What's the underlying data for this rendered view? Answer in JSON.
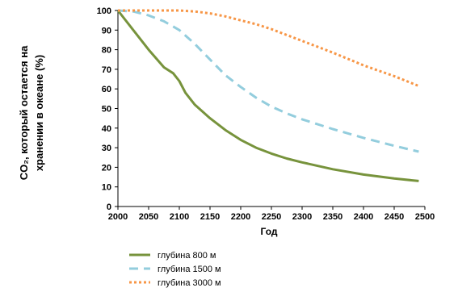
{
  "chart_data": {
    "type": "line",
    "title": "",
    "xlabel": "Год",
    "ylabel_line1": "CO₂, который остается на",
    "ylabel_line2": "хранении в океане (%)",
    "xlim": [
      2000,
      2500
    ],
    "ylim": [
      0,
      100
    ],
    "x_ticks": [
      2000,
      2050,
      2100,
      2150,
      2200,
      2250,
      2300,
      2350,
      2400,
      2450,
      2500
    ],
    "y_ticks": [
      0,
      10,
      20,
      30,
      40,
      50,
      60,
      70,
      80,
      90,
      100
    ],
    "grid": false,
    "legend_position": "bottom-left",
    "series": [
      {
        "name": "глубина 800 м",
        "color": "#77933c",
        "style": "solid",
        "points": [
          [
            2000,
            100
          ],
          [
            2025,
            90
          ],
          [
            2050,
            80
          ],
          [
            2075,
            71
          ],
          [
            2090,
            68
          ],
          [
            2100,
            64
          ],
          [
            2110,
            58
          ],
          [
            2125,
            52
          ],
          [
            2150,
            45
          ],
          [
            2175,
            39
          ],
          [
            2200,
            34
          ],
          [
            2225,
            30
          ],
          [
            2250,
            27
          ],
          [
            2275,
            24.5
          ],
          [
            2300,
            22.5
          ],
          [
            2350,
            19
          ],
          [
            2400,
            16.3
          ],
          [
            2450,
            14.3
          ],
          [
            2490,
            13
          ]
        ]
      },
      {
        "name": "глубина 1500 м",
        "color": "#93cddd",
        "style": "dashed",
        "points": [
          [
            2000,
            100
          ],
          [
            2025,
            99.5
          ],
          [
            2050,
            97.5
          ],
          [
            2075,
            94.5
          ],
          [
            2100,
            90
          ],
          [
            2125,
            83
          ],
          [
            2150,
            75
          ],
          [
            2175,
            67
          ],
          [
            2200,
            61
          ],
          [
            2225,
            55.5
          ],
          [
            2250,
            51
          ],
          [
            2275,
            47.5
          ],
          [
            2300,
            44.5
          ],
          [
            2350,
            39.5
          ],
          [
            2400,
            35
          ],
          [
            2450,
            31
          ],
          [
            2490,
            28
          ]
        ]
      },
      {
        "name": "глубина 3000 м",
        "color": "#f79646",
        "style": "dotted",
        "points": [
          [
            2000,
            100
          ],
          [
            2050,
            100
          ],
          [
            2100,
            100
          ],
          [
            2125,
            99.5
          ],
          [
            2150,
            98.5
          ],
          [
            2175,
            97
          ],
          [
            2200,
            95
          ],
          [
            2225,
            93
          ],
          [
            2250,
            90.5
          ],
          [
            2275,
            87.5
          ],
          [
            2300,
            84.5
          ],
          [
            2350,
            78.5
          ],
          [
            2400,
            72
          ],
          [
            2450,
            66.5
          ],
          [
            2490,
            61.5
          ]
        ]
      }
    ]
  }
}
